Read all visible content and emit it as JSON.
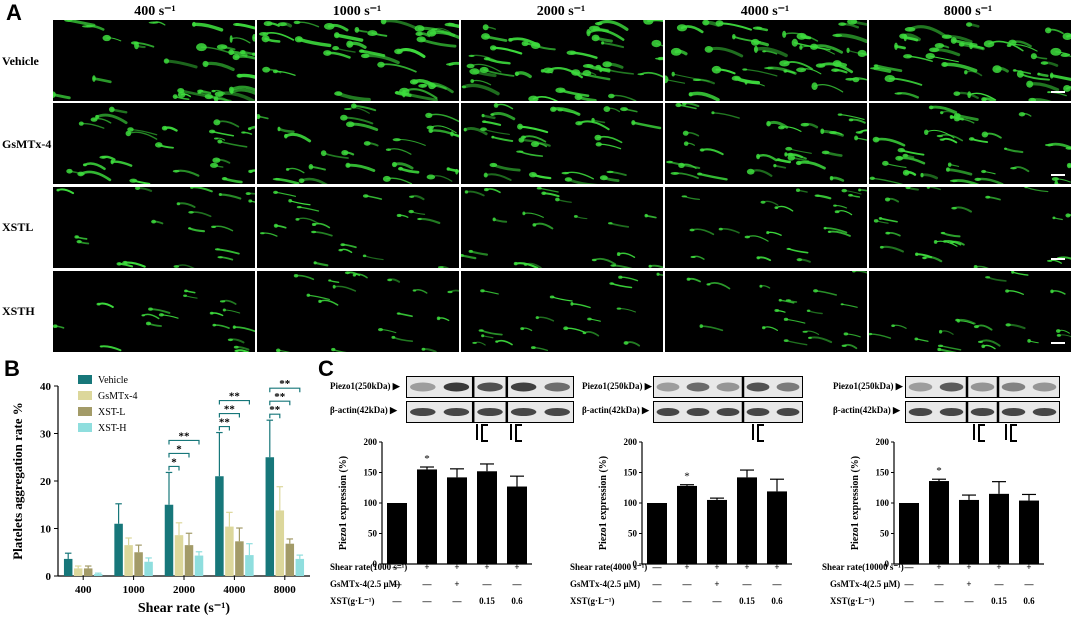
{
  "panels": {
    "a": "A",
    "b": "B",
    "c": "C"
  },
  "panel_a": {
    "columns": [
      "400 s⁻¹",
      "1000 s⁻¹",
      "2000 s⁻¹",
      "4000 s⁻¹",
      "8000 s⁻¹"
    ],
    "rows": [
      "Vehicle",
      "GsMTx-4",
      "XSTL",
      "XSTH"
    ],
    "fluorescence_color": "#3ddc3d"
  },
  "chart_data": [
    {
      "type": "bar",
      "categories": [
        "400",
        "1000",
        "2000",
        "4000",
        "8000"
      ],
      "xlabel": "Shear rate (s⁻¹)",
      "ylabel": "Platelets aggregation rate %",
      "ylim": [
        0,
        40
      ],
      "yticks": [
        0,
        10,
        20,
        30,
        40
      ],
      "legend": "top-left",
      "series": [
        {
          "name": "Vehicle",
          "color": "#17777a",
          "values": [
            3.6,
            11,
            15,
            21,
            25
          ],
          "errors": [
            1.2,
            4.2,
            6.8,
            9.2,
            7.8
          ]
        },
        {
          "name": "GsMTx-4",
          "color": "#dcd79b",
          "values": [
            1.6,
            6.5,
            8.6,
            10.4,
            13.8
          ],
          "errors": [
            0.5,
            1.5,
            2.6,
            3.0,
            5.0
          ]
        },
        {
          "name": "XST-L",
          "color": "#a39b68",
          "values": [
            1.6,
            5,
            6.5,
            7.3,
            6.8
          ],
          "errors": [
            0.5,
            1.5,
            2.5,
            2.8,
            1.0
          ]
        },
        {
          "name": "XST-H",
          "color": "#8fdede",
          "values": [
            0.4,
            3,
            4.3,
            4.4,
            3.6
          ],
          "errors": [
            0.2,
            0.8,
            0.8,
            2.4,
            0.8
          ]
        }
      ],
      "significance": [
        {
          "category": "2000",
          "compare": [
            "Vehicle",
            "XST-H"
          ],
          "label": "**"
        },
        {
          "category": "2000",
          "compare": [
            "Vehicle",
            "XST-L"
          ],
          "label": "*"
        },
        {
          "category": "2000",
          "compare": [
            "Vehicle",
            "GsMTx-4"
          ],
          "label": "*"
        },
        {
          "category": "4000",
          "compare": [
            "Vehicle",
            "XST-H"
          ],
          "label": "**"
        },
        {
          "category": "4000",
          "compare": [
            "Vehicle",
            "XST-L"
          ],
          "label": "**"
        },
        {
          "category": "4000",
          "compare": [
            "Vehicle",
            "GsMTx-4"
          ],
          "label": "**"
        },
        {
          "category": "8000",
          "compare": [
            "Vehicle",
            "XST-H"
          ],
          "label": "**"
        },
        {
          "category": "8000",
          "compare": [
            "Vehicle",
            "XST-L"
          ],
          "label": "**"
        },
        {
          "category": "8000",
          "compare": [
            "Vehicle",
            "GsMTx-4"
          ],
          "label": "**"
        }
      ]
    },
    {
      "type": "bar",
      "ylabel": "Piezo1 expression  (%)",
      "ylim": [
        0,
        200
      ],
      "yticks": [
        0,
        50,
        100,
        150,
        200
      ],
      "values": [
        100,
        155,
        142,
        152,
        127
      ],
      "errors": [
        0,
        4,
        14,
        12,
        17
      ],
      "annotations": [
        {
          "bar": 1,
          "label": "*"
        }
      ],
      "conditions": [
        {
          "label": "Shear rate(1000 s⁻¹)",
          "values": [
            "—",
            "+",
            "+",
            "+",
            "+"
          ]
        },
        {
          "label": "GsMTx-4(2.5 μM)",
          "values": [
            "—",
            "—",
            "+",
            "—",
            "—"
          ]
        },
        {
          "label": "XST(g·L⁻¹)",
          "values": [
            "—",
            "—",
            "—",
            "0.15",
            "0.6"
          ]
        }
      ],
      "blot_labels": [
        "Piezo1(250kDa)",
        "β-actin(42kDa)"
      ]
    },
    {
      "type": "bar",
      "ylabel": "Piezo1 expression  (%)",
      "ylim": [
        0,
        200
      ],
      "yticks": [
        0,
        50,
        100,
        150,
        200
      ],
      "values": [
        100,
        128,
        105,
        142,
        119
      ],
      "errors": [
        0,
        2,
        3,
        12,
        20
      ],
      "annotations": [
        {
          "bar": 1,
          "label": "*"
        }
      ],
      "conditions": [
        {
          "label": "Shear rate(4000 s⁻¹)",
          "values": [
            "—",
            "+",
            "+",
            "+",
            "+"
          ]
        },
        {
          "label": "GsMTx-4(2.5 μM)",
          "values": [
            "—",
            "—",
            "+",
            "—",
            "—"
          ]
        },
        {
          "label": "XST(g·L⁻¹)",
          "values": [
            "—",
            "—",
            "—",
            "0.15",
            "0.6"
          ]
        }
      ],
      "blot_labels": [
        "Piezo1(250kDa)",
        "β-actin(42kDa)"
      ]
    },
    {
      "type": "bar",
      "ylabel": "Piezo1 expression  (%)",
      "ylim": [
        0,
        200
      ],
      "yticks": [
        0,
        50,
        100,
        150,
        200
      ],
      "values": [
        100,
        136,
        105,
        115,
        104
      ],
      "errors": [
        0,
        3,
        8,
        20,
        10
      ],
      "annotations": [
        {
          "bar": 1,
          "label": "*"
        }
      ],
      "conditions": [
        {
          "label": "Shear rate(10000 s⁻¹)",
          "values": [
            "—",
            "+",
            "+",
            "+",
            "+"
          ]
        },
        {
          "label": "GsMTx-4(2.5 μM)",
          "values": [
            "—",
            "—",
            "+",
            "—",
            "—"
          ]
        },
        {
          "label": "XST(g·L⁻¹)",
          "values": [
            "—",
            "—",
            "—",
            "0.15",
            "0.6"
          ]
        }
      ],
      "blot_labels": [
        "Piezo1(250kDa)",
        "β-actin(42kDa)"
      ]
    }
  ]
}
